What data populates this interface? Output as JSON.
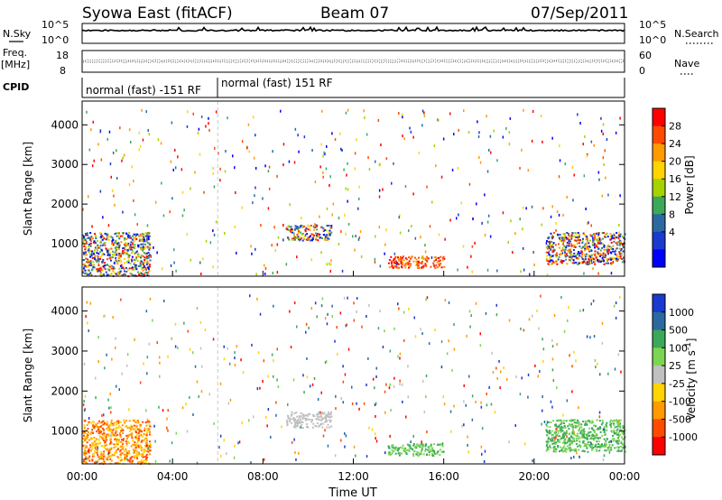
{
  "header": {
    "title": "Syowa East (fitACF)",
    "beam": "Beam 07",
    "date": "07/Sep/2011"
  },
  "strip_panels": {
    "nsky_label": "N.Sky",
    "nsearch_label": "N.Search",
    "nsky_ticks_left": [
      "10^5",
      "10^0"
    ],
    "nsky_ticks_right": [
      "10^5",
      "10^0"
    ],
    "freq_label_1": "Freq.",
    "freq_label_2": "[MHz]",
    "freq_ticks_left": [
      "18",
      "8"
    ],
    "nave_label": "Nave",
    "nave_ticks_right": [
      "60",
      "0"
    ],
    "cpid_label": "CPID",
    "cpid_modes": [
      "normal (fast) -151 RF",
      "normal (fast) 151 RF"
    ]
  },
  "chart_data": [
    {
      "type": "heatmap",
      "title": "",
      "xlabel": "",
      "ylabel": "Slant Range [km]",
      "x_ticks": [
        "00:00",
        "04:00",
        "08:00",
        "12:00",
        "16:00",
        "20:00",
        "00:00"
      ],
      "y_ticks": [
        1000,
        2000,
        3000,
        4000
      ],
      "xlim_hours": [
        0,
        24
      ],
      "ylim_km": [
        180,
        4600
      ],
      "colorbar": {
        "label": "Power [dB]",
        "ticks": [
          "28",
          "24",
          "20",
          "16",
          "12",
          "8",
          "4"
        ],
        "colors": [
          "#ff0000",
          "#ff4a00",
          "#ff9a00",
          "#ffd400",
          "#a6d200",
          "#3ca85a",
          "#2a6aa0",
          "#1a3ad0",
          "#0000ff"
        ]
      },
      "echo_regions": [
        {
          "t0": 0.0,
          "t1": 3.0,
          "r0": 200,
          "r1": 1300,
          "value": "mixed"
        },
        {
          "t0": 9.0,
          "t1": 11.0,
          "r0": 1100,
          "r1": 1500,
          "value": "mixed"
        },
        {
          "t0": 13.5,
          "t1": 16.0,
          "r0": 400,
          "r1": 700,
          "value": "high"
        },
        {
          "t0": 20.5,
          "t1": 24.0,
          "r0": 500,
          "r1": 1300,
          "value": "mixed"
        }
      ]
    },
    {
      "type": "heatmap",
      "title": "",
      "xlabel": "Time UT",
      "ylabel": "Slant Range [km]",
      "x_ticks": [
        "00:00",
        "04:00",
        "08:00",
        "12:00",
        "16:00",
        "20:00",
        "00:00"
      ],
      "y_ticks": [
        1000,
        2000,
        3000,
        4000
      ],
      "xlim_hours": [
        0,
        24
      ],
      "ylim_km": [
        180,
        4600
      ],
      "colorbar": {
        "label": "Velocity [m s^-1]",
        "ticks": [
          "1000",
          "500",
          "100",
          "25",
          "-25",
          "-100",
          "-500",
          "-1000"
        ],
        "colors": [
          "#1a3ad0",
          "#2a6aa0",
          "#3ca85a",
          "#7ad650",
          "#c0c0c0",
          "#ffd400",
          "#ff9a00",
          "#ff4a00",
          "#ff0000"
        ]
      },
      "echo_regions": [
        {
          "t0": 0.0,
          "t1": 3.0,
          "r0": 200,
          "r1": 1300,
          "value": "negative"
        },
        {
          "t0": 9.0,
          "t1": 11.0,
          "r0": 1100,
          "r1": 1500,
          "value": "near-zero"
        },
        {
          "t0": 13.5,
          "t1": 16.0,
          "r0": 400,
          "r1": 700,
          "value": "positive"
        },
        {
          "t0": 20.5,
          "t1": 24.0,
          "r0": 500,
          "r1": 1300,
          "value": "positive"
        }
      ]
    }
  ]
}
